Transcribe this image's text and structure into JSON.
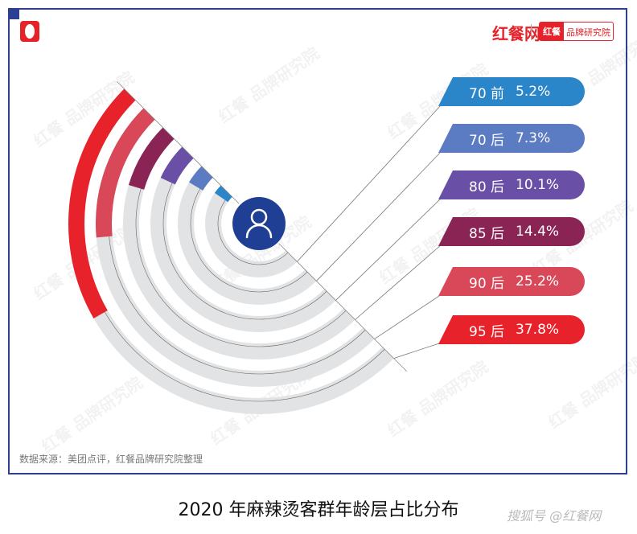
{
  "header": {
    "brand": "红餐网",
    "brand_box_a": "红餐",
    "brand_box_b": "品牌研究院",
    "watermark_text": "红餐 品牌研究院"
  },
  "chart_data": {
    "type": "radial-bar",
    "title": "2020 年麻辣烫客群年龄层占比分布",
    "categories": [
      "70 前",
      "70 后",
      "80 后",
      "85 后",
      "90 后",
      "95 后"
    ],
    "values": [
      5.2,
      7.3,
      10.1,
      14.4,
      25.2,
      37.8
    ],
    "labels": [
      "5.2%",
      "7.3%",
      "10.1%",
      "14.4%",
      "25.2%",
      "37.8%"
    ],
    "colors": [
      "#2a86c8",
      "#5b7bc3",
      "#6a4fa6",
      "#8a2455",
      "#d84859",
      "#e8222b"
    ],
    "track_color": "#e2e3e5",
    "center_icon": "user-icon",
    "center_color": "#1f3f94"
  },
  "footer": {
    "source": "数据来源：美团点评，红餐品牌研究院整理",
    "attribution": "搜狐号 @红餐网"
  }
}
